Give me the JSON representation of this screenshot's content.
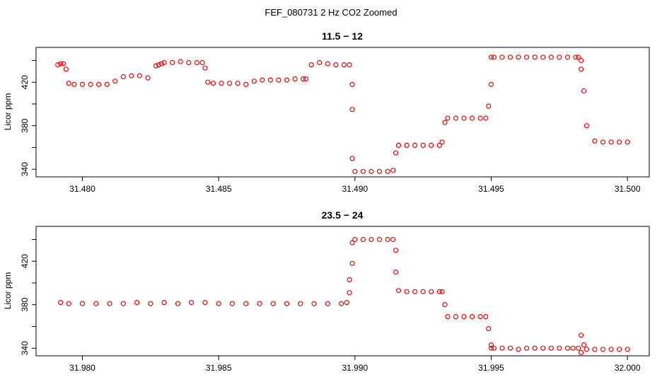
{
  "figure_title": "FEF_080731  2 Hz CO2 Zoomed",
  "chart_data": [
    {
      "type": "scatter",
      "title": "11.5 − 12",
      "xlabel": "",
      "ylabel": "Licor ppm",
      "xlim": [
        31.4783,
        31.5008
      ],
      "ylim": [
        333,
        452
      ],
      "xticks": [
        31.48,
        31.485,
        31.49,
        31.495,
        31.5
      ],
      "xtick_labels": [
        "31.480",
        "31.485",
        "31.490",
        "31.495",
        "31.500"
      ],
      "yticks": [
        340,
        360,
        380,
        400,
        420,
        440
      ],
      "ytick_labels": [
        "340",
        "",
        "380",
        "",
        "420",
        ""
      ],
      "marker_color": "#ff0000",
      "marker": "open-circle",
      "series": [
        {
          "x": [
            31.4791,
            31.4792,
            31.4793,
            31.4794,
            31.4795,
            31.4797,
            31.48,
            31.4803,
            31.4806,
            31.4809,
            31.4812,
            31.4815,
            31.4818,
            31.4821,
            31.4824,
            31.4827,
            31.4828,
            31.4829,
            31.483,
            31.4833,
            31.4836,
            31.4839,
            31.4842,
            31.4844,
            31.4845,
            31.4846,
            31.4848,
            31.4851,
            31.4854,
            31.4857,
            31.486,
            31.4863,
            31.4866,
            31.4869,
            31.4872,
            31.4875,
            31.4878,
            31.4881,
            31.4882,
            31.4884,
            31.4887,
            31.489,
            31.4893,
            31.4896,
            31.4898,
            31.4899,
            31.4899,
            31.4899,
            31.49,
            31.4903,
            31.4906,
            31.4909,
            31.4912,
            31.4914,
            31.4915,
            31.4916,
            31.4919,
            31.4922,
            31.4925,
            31.4928,
            31.4931,
            31.4932,
            31.4933,
            31.4934,
            31.4937,
            31.494,
            31.4943,
            31.4946,
            31.4948,
            31.4949,
            31.495,
            31.495,
            31.4951,
            31.4954,
            31.4957,
            31.496,
            31.4963,
            31.4966,
            31.4969,
            31.4972,
            31.4975,
            31.4978,
            31.4981,
            31.4982,
            31.4983,
            31.4983,
            31.4984,
            31.4985,
            31.4988,
            31.4991,
            31.4994,
            31.4997,
            31.5
          ],
          "y": [
            436,
            437,
            437,
            432,
            419,
            418,
            418,
            418,
            418,
            418,
            421,
            425,
            426,
            426,
            424,
            435,
            436,
            437,
            438,
            438,
            439,
            438,
            438,
            438,
            433,
            420,
            419,
            419,
            419,
            419,
            418,
            421,
            422,
            422,
            422,
            422,
            423,
            423,
            423,
            436,
            438,
            437,
            436,
            436,
            436,
            418,
            395,
            350,
            338,
            338,
            338,
            338,
            338,
            339,
            355,
            362,
            362,
            362,
            362,
            362,
            362,
            365,
            383,
            387,
            387,
            387,
            387,
            387,
            387,
            398,
            418,
            443,
            443,
            443,
            443,
            443,
            443,
            443,
            443,
            443,
            443,
            443,
            443,
            443,
            440,
            432,
            412,
            380,
            366,
            365,
            365,
            365,
            365
          ]
        }
      ]
    },
    {
      "type": "scatter",
      "title": "23.5 − 24",
      "xlabel": "",
      "ylabel": "Licor ppm",
      "xlim": [
        31.9783,
        32.0008
      ],
      "ylim": [
        333,
        452
      ],
      "xticks": [
        31.98,
        31.985,
        31.99,
        31.995,
        32.0
      ],
      "xtick_labels": [
        "31.980",
        "31.985",
        "31.990",
        "31.995",
        "32.000"
      ],
      "yticks": [
        340,
        360,
        380,
        400,
        420,
        440
      ],
      "ytick_labels": [
        "340",
        "",
        "380",
        "",
        "420",
        ""
      ],
      "marker_color": "#ff0000",
      "marker": "open-circle",
      "series": [
        {
          "x": [
            31.9792,
            31.9795,
            31.98,
            31.9805,
            31.981,
            31.9815,
            31.982,
            31.9825,
            31.983,
            31.9835,
            31.984,
            31.9845,
            31.985,
            31.9855,
            31.986,
            31.9865,
            31.987,
            31.9875,
            31.988,
            31.9885,
            31.989,
            31.9895,
            31.9897,
            31.9898,
            31.9898,
            31.9899,
            31.9899,
            31.99,
            31.9903,
            31.9906,
            31.9909,
            31.9912,
            31.9914,
            31.9915,
            31.9915,
            31.9916,
            31.9919,
            31.9922,
            31.9925,
            31.9928,
            31.9931,
            31.9932,
            31.9933,
            31.9934,
            31.9937,
            31.994,
            31.9943,
            31.9946,
            31.9948,
            31.9949,
            31.995,
            31.995,
            31.9951,
            31.9954,
            31.9957,
            31.996,
            31.9963,
            31.9966,
            31.9969,
            31.9972,
            31.9975,
            31.9978,
            31.998,
            31.9982,
            31.9983,
            31.9983,
            31.9984,
            31.9985,
            31.9988,
            31.9991,
            31.9994,
            31.9997,
            32.0
          ],
          "y": [
            382,
            381,
            381,
            381,
            381,
            381,
            382,
            381,
            382,
            381,
            382,
            382,
            381,
            381,
            381,
            381,
            381,
            381,
            381,
            381,
            381,
            381,
            382,
            391,
            403,
            418,
            437,
            440,
            440,
            440,
            440,
            440,
            440,
            430,
            410,
            393,
            392,
            392,
            392,
            392,
            392,
            392,
            380,
            369,
            369,
            369,
            369,
            369,
            369,
            358,
            343,
            340,
            340,
            340,
            340,
            339,
            340,
            340,
            340,
            340,
            340,
            340,
            340,
            340,
            352,
            336,
            343,
            339,
            339,
            339,
            339,
            339,
            339
          ]
        }
      ]
    }
  ]
}
